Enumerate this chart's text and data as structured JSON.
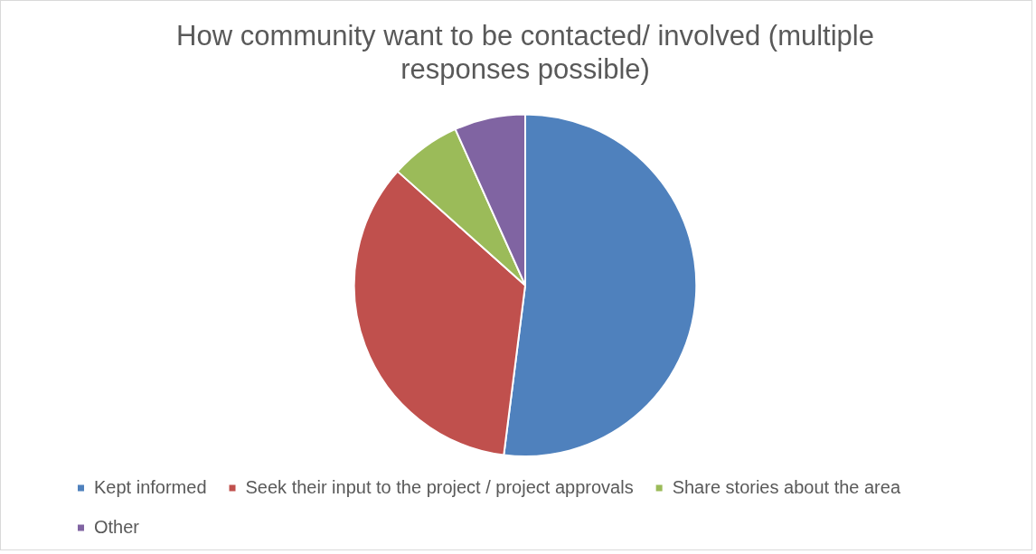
{
  "chart_data": {
    "type": "pie",
    "title": "How community want to be contacted/ involved (multiple responses possible)",
    "categories": [
      "Kept informed",
      "Seek their input to the project / project approvals",
      "Share stories about the area",
      "Other"
    ],
    "values": [
      52,
      34.6,
      6.7,
      6.7
    ],
    "colors": [
      "#4f81bd",
      "#c0504d",
      "#9bbb59",
      "#8064a2"
    ],
    "legend": "bottom"
  }
}
